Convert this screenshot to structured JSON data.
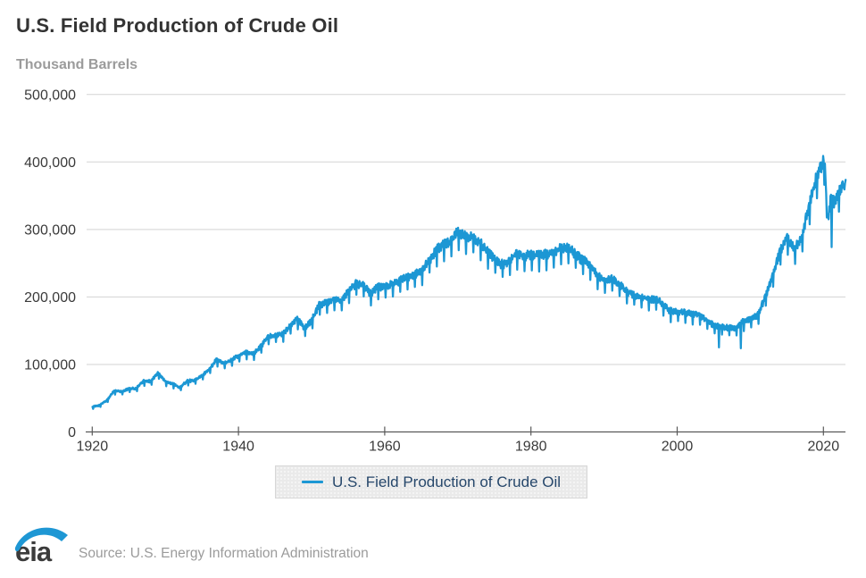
{
  "header": {
    "title": "U.S. Field Production of Crude Oil",
    "units_label": "Thousand Barrels"
  },
  "legend": {
    "label": "U.S. Field Production of Crude Oil",
    "swatch_color": "#1c97d4"
  },
  "footer": {
    "logo_text": "eia",
    "source": "Source: U.S. Energy Information Administration"
  },
  "colors": {
    "line": "#1c97d4",
    "grid": "#d3d3d3",
    "axis": "#595959",
    "tick_label": "#3a3a3a",
    "title": "#333333",
    "subtitle": "#9b9b9b",
    "legend_text": "#26476b",
    "legend_bg": "#eaeaea",
    "source_text": "#9b9b9b",
    "logo_blue": "#1e97d4",
    "logo_dark": "#3b3b3b"
  },
  "chart_data": {
    "type": "line",
    "title": "U.S. Field Production of Crude Oil",
    "xlabel": "",
    "ylabel": "Thousand Barrels",
    "frequency": "monthly",
    "grid": "horizontal",
    "legend_position": "bottom-center",
    "series_name": "U.S. Field Production of Crude Oil",
    "x_range": [
      1920,
      2023.08
    ],
    "ylim": [
      0,
      500000
    ],
    "xticks": [
      1920,
      1940,
      1960,
      1980,
      2000,
      2020
    ],
    "yticks": [
      0,
      100000,
      200000,
      300000,
      400000,
      500000
    ],
    "units": "thousand barrels per month",
    "annual_anchors": [
      [
        1920,
        37000
      ],
      [
        1921,
        39500
      ],
      [
        1922,
        46500
      ],
      [
        1923,
        61000
      ],
      [
        1924,
        59500
      ],
      [
        1925,
        63600
      ],
      [
        1926,
        64200
      ],
      [
        1927,
        75000
      ],
      [
        1928,
        75100
      ],
      [
        1929,
        87000
      ],
      [
        1930,
        74800
      ],
      [
        1931,
        71000
      ],
      [
        1932,
        65500
      ],
      [
        1933,
        75500
      ],
      [
        1934,
        76000
      ],
      [
        1935,
        83000
      ],
      [
        1936,
        92000
      ],
      [
        1937,
        107000
      ],
      [
        1938,
        101000
      ],
      [
        1939,
        106000
      ],
      [
        1940,
        113000
      ],
      [
        1941,
        117500
      ],
      [
        1942,
        115500
      ],
      [
        1943,
        125500
      ],
      [
        1944,
        140000
      ],
      [
        1945,
        143000
      ],
      [
        1946,
        144500
      ],
      [
        1947,
        155000
      ],
      [
        1948,
        168000
      ],
      [
        1949,
        153500
      ],
      [
        1950,
        164500
      ],
      [
        1951,
        187000
      ],
      [
        1952,
        190500
      ],
      [
        1953,
        196500
      ],
      [
        1954,
        193000
      ],
      [
        1955,
        207000
      ],
      [
        1956,
        218500
      ],
      [
        1957,
        218000
      ],
      [
        1958,
        204000
      ],
      [
        1959,
        214500
      ],
      [
        1960,
        214500
      ],
      [
        1961,
        218500
      ],
      [
        1962,
        223000
      ],
      [
        1963,
        229500
      ],
      [
        1964,
        232000
      ],
      [
        1965,
        237500
      ],
      [
        1966,
        252000
      ],
      [
        1967,
        268000
      ],
      [
        1968,
        277500
      ],
      [
        1969,
        281000
      ],
      [
        1970,
        297000
      ],
      [
        1971,
        289000
      ],
      [
        1972,
        288000
      ],
      [
        1973,
        280000
      ],
      [
        1974,
        267000
      ],
      [
        1975,
        255000
      ],
      [
        1976,
        248000
      ],
      [
        1977,
        251000
      ],
      [
        1978,
        265000
      ],
      [
        1979,
        260000
      ],
      [
        1980,
        262000
      ],
      [
        1981,
        261000
      ],
      [
        1982,
        263000
      ],
      [
        1983,
        264000
      ],
      [
        1984,
        271000
      ],
      [
        1985,
        273000
      ],
      [
        1986,
        264000
      ],
      [
        1987,
        254000
      ],
      [
        1988,
        248000
      ],
      [
        1989,
        232000
      ],
      [
        1990,
        224000
      ],
      [
        1991,
        226000
      ],
      [
        1992,
        219000
      ],
      [
        1993,
        208000
      ],
      [
        1994,
        203000
      ],
      [
        1995,
        199500
      ],
      [
        1996,
        197000
      ],
      [
        1997,
        196000
      ],
      [
        1998,
        190000
      ],
      [
        1999,
        179000
      ],
      [
        2000,
        177500
      ],
      [
        2001,
        176500
      ],
      [
        2002,
        175000
      ],
      [
        2003,
        173000
      ],
      [
        2004,
        165500
      ],
      [
        2005,
        157500
      ],
      [
        2006,
        155000
      ],
      [
        2007,
        154000
      ],
      [
        2008,
        152500
      ],
      [
        2009,
        163000
      ],
      [
        2010,
        166500
      ],
      [
        2011,
        172000
      ],
      [
        2012,
        198000
      ],
      [
        2013,
        227000
      ],
      [
        2014,
        265000
      ],
      [
        2015,
        287000
      ],
      [
        2016,
        270000
      ],
      [
        2017,
        284000
      ],
      [
        2018,
        333000
      ],
      [
        2019,
        374000
      ],
      [
        2019.92,
        400000
      ],
      [
        2020.25,
        390000
      ],
      [
        2020.5,
        312000
      ],
      [
        2020.8,
        328000
      ],
      [
        2021,
        342000
      ],
      [
        2021.5,
        340000
      ],
      [
        2022,
        350000
      ],
      [
        2022.5,
        362000
      ],
      [
        2023,
        365000
      ]
    ],
    "event_dips": [
      {
        "year": 2005,
        "month": 9,
        "factor": 0.82
      },
      {
        "year": 2008,
        "month": 9,
        "factor": 0.79
      },
      {
        "year": 2021,
        "month": 2,
        "factor": 0.88
      }
    ],
    "seasonal_day_length_effect": true,
    "noise_pct": 1.2
  }
}
